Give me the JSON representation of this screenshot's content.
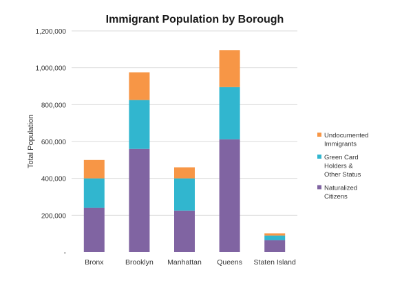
{
  "chart_data": {
    "type": "bar",
    "stacked": true,
    "title": "Immigrant Population by Borough",
    "xlabel": "",
    "ylabel": "Total Population",
    "ylim": [
      0,
      1200000
    ],
    "yticks": [
      {
        "value": 0,
        "label": "-"
      },
      {
        "value": 200000,
        "label": "200,000"
      },
      {
        "value": 400000,
        "label": "400,000"
      },
      {
        "value": 600000,
        "label": "600,000"
      },
      {
        "value": 800000,
        "label": "800,000"
      },
      {
        "value": 1000000,
        "label": "1,000,000"
      },
      {
        "value": 1200000,
        "label": "1,200,000"
      }
    ],
    "grid": true,
    "legend_position": "right",
    "categories": [
      "Bronx",
      "Brooklyn",
      "Manhattan",
      "Queens",
      "Staten Island"
    ],
    "series": [
      {
        "name": "Naturalized Citizens",
        "legend_lines": [
          "Naturalized",
          "Citizens"
        ],
        "color": "#8064a2",
        "values": [
          240000,
          560000,
          225000,
          612000,
          65000
        ]
      },
      {
        "name": "Green Card Holders & Other Status",
        "legend_lines": [
          "Green Card",
          "Holders &",
          "Other Status"
        ],
        "color": "#31b6cf",
        "values": [
          160000,
          265000,
          175000,
          283000,
          25000
        ]
      },
      {
        "name": "Undocumented Immigrants",
        "legend_lines": [
          "Undocumented",
          "Immigrants"
        ],
        "color": "#f79646",
        "values": [
          100000,
          150000,
          60000,
          200000,
          12000
        ]
      }
    ]
  }
}
